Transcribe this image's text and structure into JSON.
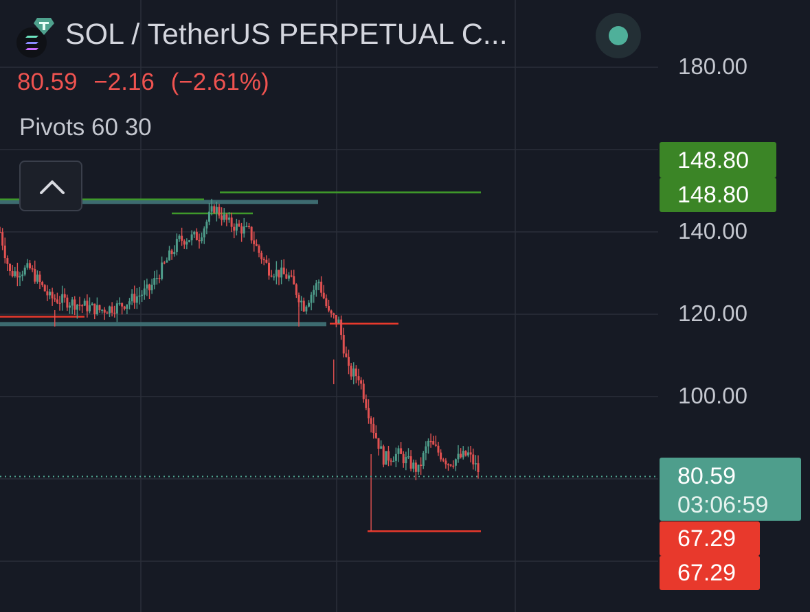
{
  "header": {
    "title": "SOL / TetherUS PERPETUAL C...",
    "last_price": "80.59",
    "change": "−2.16",
    "change_pct": "(−2.61%)",
    "indicator": "Pivots 60 30"
  },
  "axis": {
    "ticks": [
      "180.00",
      "140.00",
      "120.00",
      "100.00"
    ],
    "pivot_high_labels": [
      "148.80",
      "148.80"
    ],
    "current_price_label": "80.59",
    "countdown": "03:06:59",
    "pivot_low_labels": [
      "67.29",
      "67.29"
    ]
  },
  "colors": {
    "background": "#161a24",
    "up": "#4e9d8b",
    "down": "#e25151",
    "pivot_high": "#3f8a28",
    "pivot_low": "#e8392c",
    "current_price": "#4fa28e",
    "grid": "#2a2e39"
  },
  "icons": {
    "coin": "solana-coin-icon",
    "badge": "tether-badge-icon",
    "collapse": "chevron-up-icon",
    "status": "market-status-dot-icon"
  },
  "chart_data": {
    "type": "candlestick",
    "symbol": "SOL / TetherUS PERPETUAL C...",
    "ylim": [
      60,
      185
    ],
    "yticks": [
      180,
      160,
      140,
      120,
      100,
      80
    ],
    "grid": true,
    "indicator": "Pivots 60 30",
    "current_price": 80.59,
    "pivot_high": 148.8,
    "pivot_low": 67.29,
    "pivot_lines": [
      {
        "kind": "high",
        "value": 147.9
      },
      {
        "kind": "high",
        "value": 149.6
      },
      {
        "kind": "high",
        "value": 144.5
      },
      {
        "kind": "low",
        "value": 119.4
      },
      {
        "kind": "low",
        "value": 117.7
      },
      {
        "kind": "low",
        "value": 67.29
      }
    ],
    "support_bands": [
      147.3,
      117.6
    ],
    "price_path": [
      {
        "t": 0,
        "p": 140
      },
      {
        "t": 2,
        "p": 130
      },
      {
        "t": 6,
        "p": 131
      },
      {
        "t": 10,
        "p": 124
      },
      {
        "t": 14,
        "p": 123
      },
      {
        "t": 20,
        "p": 121
      },
      {
        "t": 24,
        "p": 122
      },
      {
        "t": 30,
        "p": 126
      },
      {
        "t": 36,
        "p": 138
      },
      {
        "t": 40,
        "p": 139
      },
      {
        "t": 43,
        "p": 146
      },
      {
        "t": 46,
        "p": 142
      },
      {
        "t": 50,
        "p": 140
      },
      {
        "t": 52,
        "p": 135
      },
      {
        "t": 54,
        "p": 131
      },
      {
        "t": 58,
        "p": 129
      },
      {
        "t": 61,
        "p": 122
      },
      {
        "t": 64,
        "p": 128
      },
      {
        "t": 66,
        "p": 120
      },
      {
        "t": 68,
        "p": 118
      },
      {
        "t": 70,
        "p": 106
      },
      {
        "t": 72,
        "p": 105
      },
      {
        "t": 75,
        "p": 92
      },
      {
        "t": 77,
        "p": 85
      },
      {
        "t": 80,
        "p": 86
      },
      {
        "t": 84,
        "p": 82
      },
      {
        "t": 86,
        "p": 89
      },
      {
        "t": 90,
        "p": 84
      },
      {
        "t": 94,
        "p": 86
      },
      {
        "t": 96,
        "p": 82
      }
    ]
  }
}
